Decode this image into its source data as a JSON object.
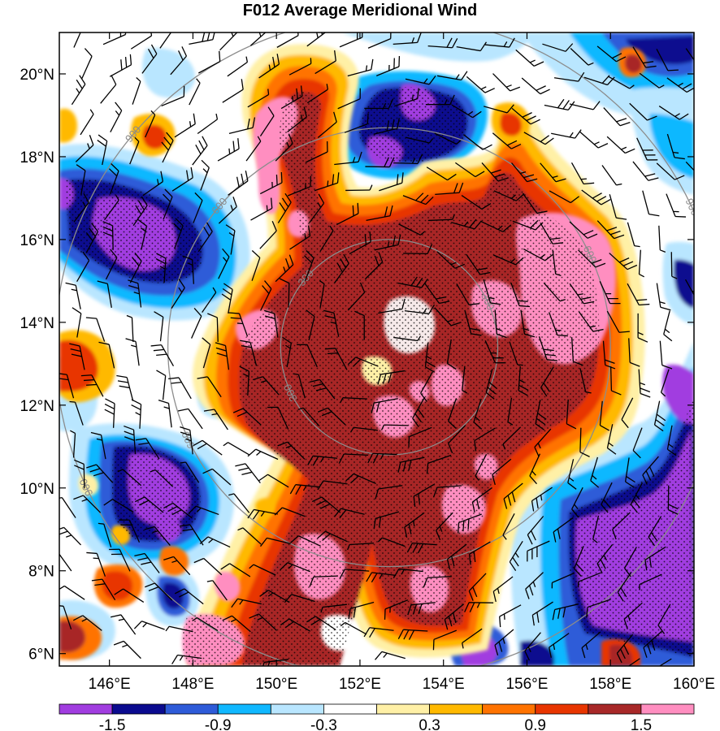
{
  "title": "F012 Average Meridional Wind",
  "map": {
    "lon_range": [
      144.8,
      160
    ],
    "lat_range": [
      5.7,
      21
    ],
    "lon_ticks": [
      {
        "value": 146,
        "label": "146°E"
      },
      {
        "value": 148,
        "label": "148°E"
      },
      {
        "value": 150,
        "label": "150°E"
      },
      {
        "value": 152,
        "label": "152°E"
      },
      {
        "value": 154,
        "label": "154°E"
      },
      {
        "value": 156,
        "label": "156°E"
      },
      {
        "value": 158,
        "label": "158°E"
      },
      {
        "value": 160,
        "label": "160°E"
      }
    ],
    "lat_ticks": [
      {
        "value": 6,
        "label": "6°N"
      },
      {
        "value": 8,
        "label": "8°N"
      },
      {
        "value": 10,
        "label": "10°N"
      },
      {
        "value": 12,
        "label": "12°N"
      },
      {
        "value": 14,
        "label": "14°N"
      },
      {
        "value": 16,
        "label": "16°N"
      },
      {
        "value": 18,
        "label": "18°N"
      },
      {
        "value": 20,
        "label": "20°N"
      }
    ],
    "range_ring_center": [
      152.7,
      13.4
    ],
    "range_rings": [
      {
        "radius_deg": 2.6,
        "label": "300"
      },
      {
        "radius_deg": 5.3,
        "label": "600"
      },
      {
        "radius_deg": 8.0,
        "label": "900"
      }
    ]
  },
  "colorbar": {
    "colors": [
      "#a13de0",
      "#0b0b8f",
      "#2e5bd8",
      "#10b8ff",
      "#b9e6ff",
      "#ffffff",
      "#fff0a6",
      "#ffb900",
      "#ff7300",
      "#e83500",
      "#a82828",
      "#ff8ec0"
    ],
    "labels": [
      {
        "index": 1,
        "text": "-1.5"
      },
      {
        "index": 3,
        "text": "-0.9"
      },
      {
        "index": 5,
        "text": "-0.3"
      },
      {
        "index": 7,
        "text": "0.3"
      },
      {
        "index": 9,
        "text": "0.9"
      },
      {
        "index": 11,
        "text": "1.5"
      }
    ]
  }
}
